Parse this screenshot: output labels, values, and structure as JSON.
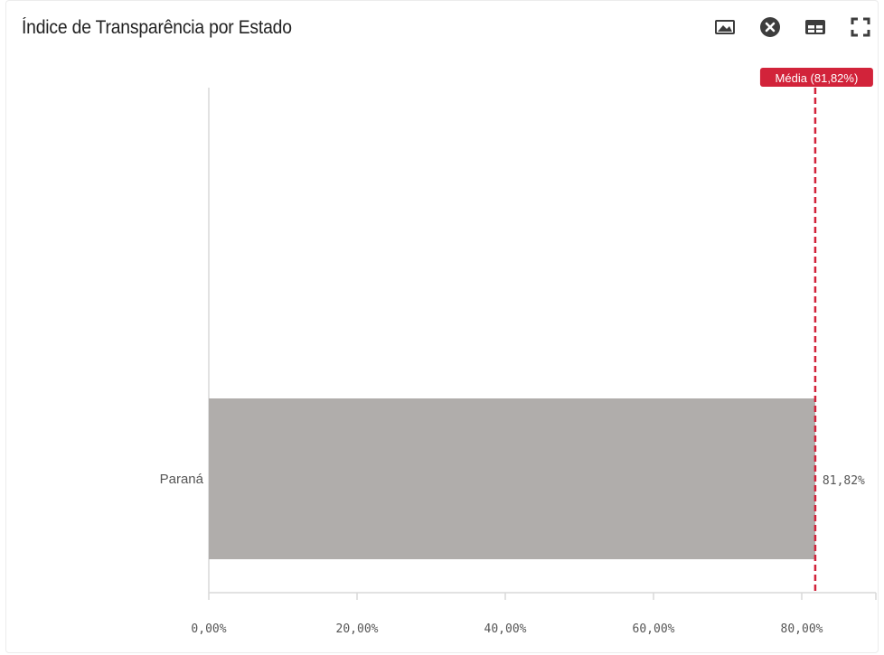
{
  "header": {
    "title": "Índice de Transparência por Estado"
  },
  "toolbar": {
    "icons": [
      "image-icon",
      "close-circle-icon",
      "table-icon",
      "fullscreen-icon"
    ]
  },
  "colors": {
    "bar": "#b0adab",
    "average": "#d2233a",
    "axis": "#d9d9d9"
  },
  "chart_data": {
    "type": "bar",
    "orientation": "horizontal",
    "categories": [
      "Paraná"
    ],
    "values": [
      81.82
    ],
    "value_labels": [
      "81,82%"
    ],
    "xlim": [
      0,
      90
    ],
    "x_ticks": [
      0,
      20,
      40,
      60,
      80
    ],
    "x_tick_labels": [
      "0,00%",
      "20,00%",
      "40,00%",
      "60,00%",
      "80,00%"
    ],
    "average": {
      "value": 81.82,
      "label": "Média (81,82%)"
    },
    "grid": false,
    "title": "Índice de Transparência por Estado"
  }
}
